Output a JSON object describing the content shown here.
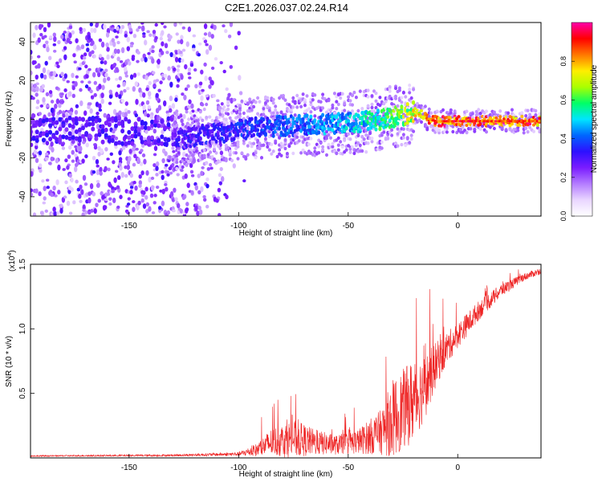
{
  "title": "C2E1.2026.037.02.24.R14",
  "chart_data": [
    {
      "type": "heatmap",
      "xlabel": "Height of straight line (km)",
      "ylabel": "Frequency (Hz)",
      "xlim": [
        -195,
        38
      ],
      "ylim": [
        -50,
        50
      ],
      "xticks": [
        -150,
        -100,
        -50,
        0
      ],
      "yticks": [
        -40,
        -20,
        0,
        20,
        40
      ],
      "colorbar": {
        "label": "Normalized spectral amplitude",
        "range": [
          0,
          1
        ],
        "ticks": [
          "0.0",
          "0.2",
          "0.4",
          "0.6",
          "0.8"
        ],
        "colors": [
          "#ffffff",
          "#e9d6ff",
          "#b47cff",
          "#7a1cff",
          "#2d10ff",
          "#0066ff",
          "#00e5ff",
          "#00ff66",
          "#aaff00",
          "#ffee00",
          "#ff7700",
          "#ff0000",
          "#ff00aa"
        ]
      },
      "ridge": {
        "x": [
          -128,
          -110,
          -90,
          -70,
          -50,
          -35,
          -25,
          -20,
          -15,
          -10,
          0,
          20,
          38
        ],
        "freq": [
          -10,
          -7,
          -4,
          -3,
          -2,
          0,
          2,
          4,
          1,
          -1,
          -1,
          -1,
          -1
        ],
        "amplitude": [
          0.3,
          0.33,
          0.37,
          0.42,
          0.47,
          0.55,
          0.65,
          0.7,
          0.8,
          0.85,
          0.9,
          0.88,
          0.85
        ]
      }
    },
    {
      "type": "line",
      "xlabel": "Height of straight line (km)",
      "ylabel": "SNR (10 * v/v)",
      "y_multiplier": "(x10",
      "y_multiplier_exp": "4",
      "xlim": [
        -195,
        38
      ],
      "ylim": [
        0,
        1.5
      ],
      "xticks": [
        -150,
        -100,
        -50,
        0
      ],
      "yticks": [
        "0.5",
        "1.0",
        "1.5"
      ],
      "ytick_values": [
        0.5,
        1.0,
        1.5
      ],
      "color": "#ee2222",
      "envelope": {
        "x": [
          -195,
          -130,
          -100,
          -92,
          -85,
          -75,
          -65,
          -55,
          -45,
          -35,
          -30,
          -20,
          -15,
          -10,
          -5,
          0,
          10,
          20,
          30,
          38
        ],
        "baseline": [
          0.015,
          0.02,
          0.03,
          0.06,
          0.12,
          0.15,
          0.12,
          0.1,
          0.13,
          0.2,
          0.3,
          0.45,
          0.55,
          0.72,
          0.85,
          0.95,
          1.15,
          1.3,
          1.4,
          1.45
        ],
        "spread": [
          0.01,
          0.015,
          0.03,
          0.1,
          0.22,
          0.3,
          0.2,
          0.15,
          0.2,
          0.35,
          0.6,
          0.65,
          0.5,
          0.35,
          0.25,
          0.2,
          0.15,
          0.1,
          0.06,
          0.05
        ]
      }
    }
  ]
}
